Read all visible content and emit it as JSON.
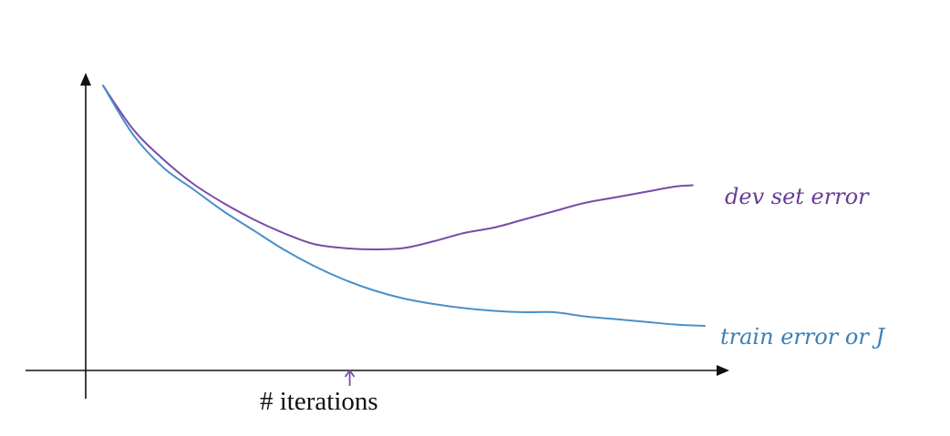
{
  "chart_data": {
    "type": "line",
    "title": "",
    "xlabel": "# iterations",
    "ylabel": "",
    "xlim": [
      0,
      100
    ],
    "ylim": [
      0,
      100
    ],
    "grid": false,
    "legend": "none",
    "series": [
      {
        "name": "dev set error",
        "color": "#7a4ba8",
        "x": [
          0,
          5,
          10,
          15,
          20,
          25,
          30,
          35,
          40,
          45,
          50,
          55,
          60,
          65,
          70,
          75,
          80,
          85,
          90,
          95,
          98
        ],
        "y": [
          98,
          82,
          71,
          62,
          55,
          49,
          44,
          40,
          38.5,
          38,
          38.5,
          41,
          44,
          46,
          49,
          52,
          55,
          57,
          59,
          61,
          61.5
        ]
      },
      {
        "name": "train error or J",
        "color": "#4a8fc8",
        "x": [
          0,
          5,
          10,
          15,
          20,
          25,
          30,
          35,
          40,
          45,
          50,
          55,
          60,
          65,
          70,
          75,
          80,
          85,
          90,
          95,
          100
        ],
        "y": [
          98,
          80,
          68,
          60,
          52,
          45,
          38,
          32,
          27,
          23,
          20,
          18,
          16.5,
          15.5,
          15,
          15,
          13.5,
          12.5,
          11.5,
          10.5,
          10
        ]
      }
    ],
    "annotations": [
      {
        "text": "dev set error",
        "color": "#6a3b98",
        "anchor_series": 0
      },
      {
        "text": "train error or J",
        "color": "#3a7fb8",
        "anchor_series": 1
      }
    ],
    "x_marker": {
      "x": 41,
      "color": "#7a4ba8"
    }
  }
}
